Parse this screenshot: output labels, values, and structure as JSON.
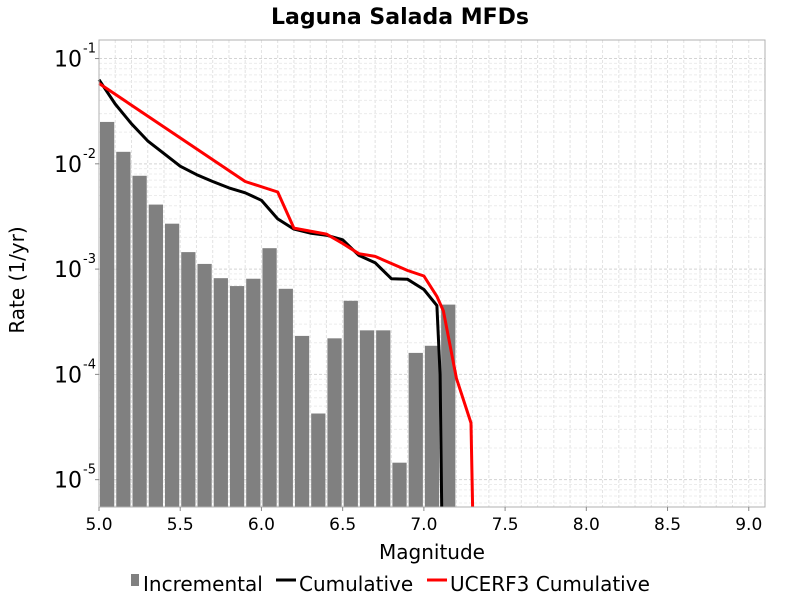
{
  "chart_data": {
    "type": "bar",
    "title": "Laguna Salada MFDs",
    "xlabel": "Magnitude",
    "ylabel": "Rate (1/yr)",
    "xlim": [
      5.0,
      9.1
    ],
    "ylim": [
      5.5e-06,
      0.15
    ],
    "yscale": "log",
    "grid": true,
    "legend_position": "bottom",
    "x_ticks": [
      "5.0",
      "5.5",
      "6.0",
      "6.5",
      "7.0",
      "7.5",
      "8.0",
      "8.5",
      "9.0"
    ],
    "x_tick_values": [
      5.0,
      5.5,
      6.0,
      6.5,
      7.0,
      7.5,
      8.0,
      8.5,
      9.0
    ],
    "y_ticks": [
      {
        "base": "10",
        "exp": "-1",
        "value": 0.1
      },
      {
        "base": "10",
        "exp": "-2",
        "value": 0.01
      },
      {
        "base": "10",
        "exp": "-3",
        "value": 0.001
      },
      {
        "base": "10",
        "exp": "-4",
        "value": 0.0001
      },
      {
        "base": "10",
        "exp": "-5",
        "value": 1e-05
      }
    ],
    "series": [
      {
        "name": "Incremental",
        "kind": "bar",
        "color": "#808080",
        "x": [
          5.05,
          5.15,
          5.25,
          5.35,
          5.45,
          5.55,
          5.65,
          5.75,
          5.85,
          5.95,
          6.05,
          6.15,
          6.25,
          6.35,
          6.45,
          6.55,
          6.65,
          6.75,
          6.85,
          6.95,
          7.05,
          7.15
        ],
        "values": [
          0.025,
          0.013,
          0.0077,
          0.0041,
          0.0027,
          0.00145,
          0.00112,
          0.00082,
          0.00069,
          0.00081,
          0.00158,
          0.00065,
          0.000232,
          4.25e-05,
          0.00022,
          0.0005,
          0.000262,
          0.000262,
          1.45e-05,
          0.00016,
          0.000187,
          0.00046
        ]
      },
      {
        "name": "Cumulative",
        "kind": "line",
        "color": "#000000",
        "x": [
          5.0,
          5.1,
          5.2,
          5.3,
          5.4,
          5.5,
          5.6,
          5.7,
          5.8,
          5.9,
          6.0,
          6.1,
          6.2,
          6.3,
          6.4,
          6.5,
          6.6,
          6.7,
          6.8,
          6.9,
          7.0,
          7.08,
          7.1,
          7.11
        ],
        "values": [
          0.063,
          0.037,
          0.024,
          0.0165,
          0.0125,
          0.0095,
          0.0079,
          0.0068,
          0.0059,
          0.0053,
          0.0045,
          0.003,
          0.0024,
          0.0022,
          0.0021,
          0.0019,
          0.00135,
          0.00115,
          0.00081,
          0.0008,
          0.00064,
          0.00045,
          0.0001,
          5.5e-06
        ]
      },
      {
        "name": "UCERF3 Cumulative",
        "kind": "line",
        "color": "#ff0000",
        "x": [
          5.0,
          5.9,
          6.1,
          6.2,
          6.4,
          6.5,
          6.6,
          6.7,
          6.9,
          7.0,
          7.08,
          7.12,
          7.2,
          7.29,
          7.3
        ],
        "values": [
          0.058,
          0.0068,
          0.0054,
          0.00245,
          0.00215,
          0.00175,
          0.0014,
          0.00132,
          0.00097,
          0.00086,
          0.00055,
          0.0004,
          9.2e-05,
          3.45e-05,
          5.5e-06
        ]
      }
    ]
  }
}
